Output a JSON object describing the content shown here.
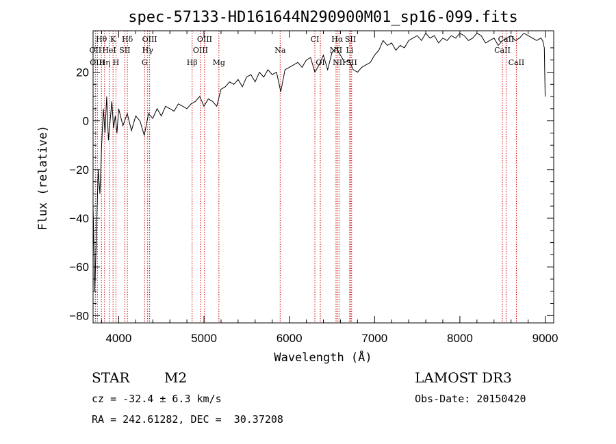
{
  "chart_data": {
    "type": "line",
    "title": "spec-57133-HD161644N290900M01_sp16-099.fits",
    "xlabel": "Wavelength (Å)",
    "ylabel": "Flux (relative)",
    "xlim": [
      3700,
      9100
    ],
    "ylim": [
      -83,
      37
    ],
    "xticks": [
      4000,
      5000,
      6000,
      7000,
      8000,
      9000
    ],
    "yticks": [
      -80,
      -60,
      -40,
      -20,
      0,
      20
    ],
    "series": [
      {
        "name": "spectrum",
        "x": [
          3700,
          3720,
          3740,
          3760,
          3780,
          3800,
          3820,
          3840,
          3860,
          3880,
          3900,
          3920,
          3940,
          3960,
          3980,
          4000,
          4050,
          4100,
          4150,
          4200,
          4250,
          4300,
          4350,
          4400,
          4450,
          4500,
          4550,
          4600,
          4650,
          4700,
          4750,
          4800,
          4850,
          4900,
          4950,
          5000,
          5050,
          5100,
          5150,
          5200,
          5250,
          5300,
          5350,
          5400,
          5450,
          5500,
          5550,
          5600,
          5650,
          5700,
          5750,
          5800,
          5850,
          5900,
          5950,
          6000,
          6050,
          6100,
          6150,
          6200,
          6250,
          6300,
          6350,
          6400,
          6450,
          6500,
          6550,
          6600,
          6650,
          6700,
          6750,
          6800,
          6850,
          6900,
          6950,
          7000,
          7050,
          7100,
          7150,
          7200,
          7250,
          7300,
          7350,
          7400,
          7450,
          7500,
          7550,
          7600,
          7650,
          7700,
          7750,
          7800,
          7850,
          7900,
          7950,
          8000,
          8050,
          8100,
          8150,
          8200,
          8250,
          8300,
          8350,
          8400,
          8450,
          8500,
          8550,
          8600,
          8650,
          8700,
          8750,
          8800,
          8850,
          8900,
          8950,
          8970,
          8990,
          9000
        ],
        "y": [
          -35,
          -70,
          -45,
          -20,
          -30,
          -10,
          5,
          -5,
          10,
          -8,
          0,
          8,
          -3,
          2,
          -5,
          5,
          -2,
          3,
          -4,
          2,
          0,
          -6,
          3,
          1,
          5,
          2,
          6,
          5,
          4,
          7,
          6,
          5,
          7,
          8,
          10,
          6,
          9,
          8,
          6,
          13,
          14,
          16,
          15,
          17,
          14,
          18,
          19,
          16,
          20,
          18,
          21,
          19,
          20,
          12,
          21,
          22,
          23,
          24,
          22,
          25,
          26,
          20,
          23,
          27,
          21,
          28,
          30,
          27,
          24,
          25,
          21,
          20,
          22,
          23,
          24,
          27,
          29,
          33,
          31,
          32,
          29,
          31,
          30,
          33,
          34,
          35,
          33,
          36,
          34,
          35,
          32,
          34,
          33,
          35,
          34,
          36,
          35,
          33,
          34,
          36,
          35,
          32,
          33,
          34,
          31,
          33,
          34,
          35,
          33,
          34,
          36,
          35,
          34,
          33,
          34,
          33,
          30,
          10
        ]
      }
    ],
    "spectral_lines": [
      {
        "name": "Hθ",
        "wavelength": 3798,
        "row": 1
      },
      {
        "name": "K",
        "wavelength": 3934,
        "row": 1
      },
      {
        "name": "Hδ",
        "wavelength": 4102,
        "row": 1
      },
      {
        "name": "OIII",
        "wavelength": 4363,
        "row": 1
      },
      {
        "name": "OIII",
        "wavelength": 5007,
        "row": 1
      },
      {
        "name": "CI",
        "wavelength": 6300,
        "row": 1
      },
      {
        "name": "Hα",
        "wavelength": 6563,
        "row": 1
      },
      {
        "name": "SII",
        "wavelength": 6717,
        "row": 1
      },
      {
        "name": "CaII",
        "wavelength": 8542,
        "row": 1
      },
      {
        "name": "OII",
        "wavelength": 3727,
        "row": 2
      },
      {
        "name": "HeI",
        "wavelength": 3889,
        "row": 2
      },
      {
        "name": "SII",
        "wavelength": 4072,
        "row": 2
      },
      {
        "name": "Hγ",
        "wavelength": 4340,
        "row": 2
      },
      {
        "name": "OIII",
        "wavelength": 4959,
        "row": 2
      },
      {
        "name": "Na",
        "wavelength": 5893,
        "row": 2
      },
      {
        "name": "NII",
        "wavelength": 6548,
        "row": 2
      },
      {
        "name": "Li",
        "wavelength": 6708,
        "row": 2
      },
      {
        "name": "CaII",
        "wavelength": 8498,
        "row": 2
      },
      {
        "name": "OIII",
        "wavelength": 3750,
        "row": 3
      },
      {
        "name": "Hη",
        "wavelength": 3835,
        "row": 3
      },
      {
        "name": "H",
        "wavelength": 3968,
        "row": 3
      },
      {
        "name": "G",
        "wavelength": 4304,
        "row": 3
      },
      {
        "name": "Hβ",
        "wavelength": 4861,
        "row": 3
      },
      {
        "name": "Mg",
        "wavelength": 5175,
        "row": 3
      },
      {
        "name": "OI",
        "wavelength": 6364,
        "row": 3
      },
      {
        "name": "NII",
        "wavelength": 6583,
        "row": 3
      },
      {
        "name": "SII",
        "wavelength": 6731,
        "row": 3
      },
      {
        "name": "CaII",
        "wavelength": 8662,
        "row": 3
      }
    ],
    "line_color": "#cc0000"
  },
  "info": {
    "object_class": "STAR",
    "subclass": "M2",
    "survey": "LAMOST DR3",
    "redshift_text": "cz = -32.4 ± 6.3 km/s",
    "obs_date_text": "Obs-Date: 20150420",
    "coords_text": "RA = 242.61282, DEC =  30.37208"
  }
}
